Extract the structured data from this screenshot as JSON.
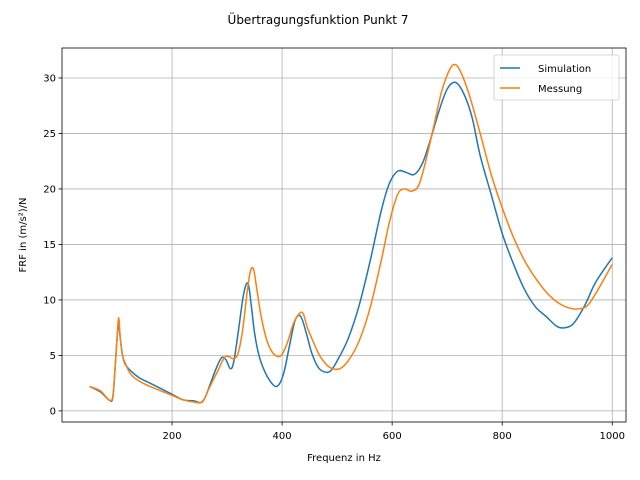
{
  "chart_data": {
    "type": "line",
    "title": "Übertragungsfunktion Punkt 7",
    "xlabel": "Frequenz in Hz",
    "ylabel": "FRF in (m/s²)/N",
    "xlim": [
      0,
      1025
    ],
    "ylim": [
      -1,
      32.7
    ],
    "xticks": [
      200,
      400,
      600,
      800,
      1000
    ],
    "yticks": [
      0,
      5,
      10,
      15,
      20,
      25,
      30
    ],
    "grid": true,
    "legend_position": "top-right",
    "series": [
      {
        "name": "Simulation",
        "color": "#1f77b4",
        "x": [
          50,
          70,
          85,
          92,
          96,
          100,
          103,
          106,
          110,
          115,
          125,
          140,
          160,
          180,
          200,
          220,
          240,
          252,
          260,
          270,
          280,
          290,
          298,
          306,
          312,
          320,
          330,
          338,
          344,
          350,
          358,
          368,
          378,
          388,
          396,
          404,
          414,
          424,
          434,
          444,
          454,
          466,
          478,
          488,
          500,
          520,
          540,
          560,
          580,
          595,
          610,
          625,
          640,
          655,
          670,
          685,
          700,
          715,
          730,
          745,
          760,
          780,
          800,
          820,
          840,
          860,
          880,
          900,
          915,
          930,
          950,
          970,
          1000
        ],
        "y": [
          2.2,
          1.7,
          1.0,
          1.1,
          3.5,
          6.5,
          7.8,
          6.5,
          5.0,
          4.2,
          3.6,
          3.0,
          2.5,
          2.0,
          1.5,
          1.0,
          0.9,
          0.75,
          1.2,
          2.5,
          3.8,
          4.8,
          4.6,
          3.8,
          4.4,
          7.0,
          10.5,
          11.5,
          9.5,
          7.0,
          5.0,
          3.6,
          2.7,
          2.2,
          2.5,
          3.6,
          6.0,
          8.2,
          8.5,
          7.0,
          5.2,
          3.9,
          3.5,
          3.6,
          4.5,
          6.5,
          9.5,
          13.5,
          18.0,
          20.5,
          21.6,
          21.5,
          21.3,
          22.3,
          24.5,
          27.0,
          29.0,
          29.6,
          28.6,
          26.5,
          23.0,
          19.5,
          16.0,
          13.3,
          11.0,
          9.4,
          8.5,
          7.6,
          7.5,
          7.9,
          9.5,
          11.6,
          13.8
        ]
      },
      {
        "name": "Messung",
        "color": "#ff7f0e",
        "x": [
          50,
          70,
          85,
          92,
          96,
          100,
          103,
          106,
          110,
          115,
          125,
          140,
          160,
          180,
          200,
          220,
          240,
          255,
          265,
          275,
          285,
          295,
          303,
          312,
          320,
          328,
          336,
          342,
          348,
          354,
          362,
          372,
          382,
          392,
          400,
          410,
          420,
          430,
          438,
          446,
          456,
          468,
          480,
          492,
          505,
          520,
          540,
          560,
          580,
          595,
          610,
          622,
          635,
          648,
          660,
          675,
          690,
          705,
          715,
          725,
          740,
          760,
          780,
          800,
          820,
          840,
          860,
          880,
          900,
          920,
          940,
          960,
          1000
        ],
        "y": [
          2.2,
          1.8,
          1.0,
          1.2,
          3.5,
          6.5,
          8.4,
          6.5,
          5.0,
          4.3,
          3.3,
          2.7,
          2.2,
          1.8,
          1.4,
          1.0,
          0.8,
          0.8,
          1.8,
          2.8,
          3.8,
          4.8,
          4.9,
          4.7,
          5.2,
          7.2,
          10.5,
          12.5,
          12.8,
          11.0,
          8.5,
          6.4,
          5.3,
          4.9,
          5.1,
          6.2,
          7.8,
          8.7,
          8.8,
          7.5,
          6.3,
          5.0,
          4.2,
          3.8,
          3.8,
          4.5,
          6.3,
          9.3,
          13.5,
          17.0,
          19.5,
          20.0,
          19.8,
          20.3,
          22.3,
          25.5,
          28.8,
          30.8,
          31.2,
          30.5,
          28.5,
          25.0,
          21.3,
          18.3,
          15.7,
          13.6,
          12.0,
          10.7,
          9.8,
          9.3,
          9.2,
          9.8,
          13.2
        ]
      }
    ]
  }
}
